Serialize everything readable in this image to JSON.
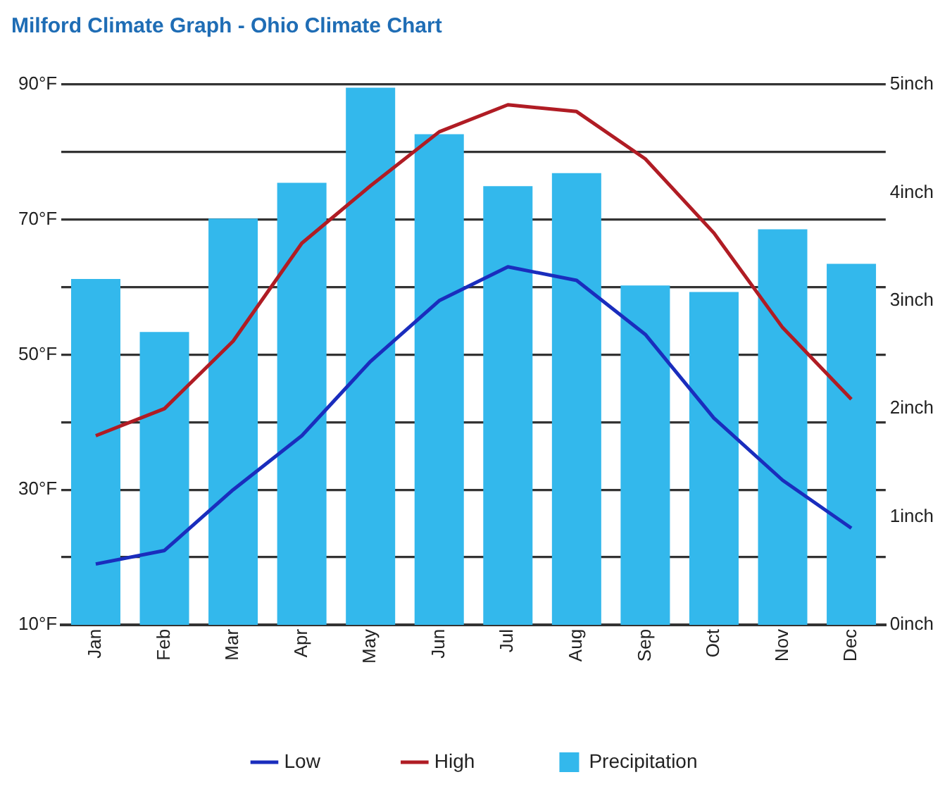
{
  "chart_data": {
    "type": "bar",
    "title": "Milford Climate Graph - Ohio Climate Chart",
    "categories": [
      "Jan",
      "Feb",
      "Mar",
      "Apr",
      "May",
      "Jun",
      "Jul",
      "Aug",
      "Sep",
      "Oct",
      "Nov",
      "Dec"
    ],
    "series": [
      {
        "name": "Low",
        "type": "line",
        "color": "#1a2dbd",
        "values": [
          19,
          21,
          30,
          38,
          49,
          58,
          63,
          61,
          53,
          40.6,
          31.4,
          24.3
        ]
      },
      {
        "name": "High",
        "type": "line",
        "color": "#b01c24",
        "values": [
          38,
          42,
          52,
          66.5,
          75,
          83,
          87,
          86,
          79,
          68,
          54,
          43.4
        ]
      },
      {
        "name": "Precipitation",
        "axis": "y2",
        "color": "#33b8ec",
        "values": [
          3.2,
          2.71,
          3.76,
          4.09,
          4.97,
          4.54,
          4.06,
          4.18,
          3.14,
          3.08,
          3.66,
          3.34
        ]
      }
    ],
    "ylim": [
      10,
      90
    ],
    "yticks": [
      {
        "value": 10,
        "label": "10°F"
      },
      {
        "value": 20,
        "label": null
      },
      {
        "value": 30,
        "label": "30°F"
      },
      {
        "value": 40,
        "label": null
      },
      {
        "value": 50,
        "label": "50°F"
      },
      {
        "value": 60,
        "label": null
      },
      {
        "value": 70,
        "label": "70°F"
      },
      {
        "value": 80,
        "label": null
      },
      {
        "value": 90,
        "label": "90°F"
      }
    ],
    "y2lim": [
      0,
      5
    ],
    "y2ticks": [
      {
        "value": 0,
        "label": "0inch"
      },
      {
        "value": 1,
        "label": "1inch"
      },
      {
        "value": 2,
        "label": "2inch"
      },
      {
        "value": 3,
        "label": "3inch"
      },
      {
        "value": 4,
        "label": "4inch"
      },
      {
        "value": 5,
        "label": "5inch"
      }
    ],
    "grid": "y",
    "legend": "bottom",
    "marker": "none",
    "line_style": "solid"
  }
}
